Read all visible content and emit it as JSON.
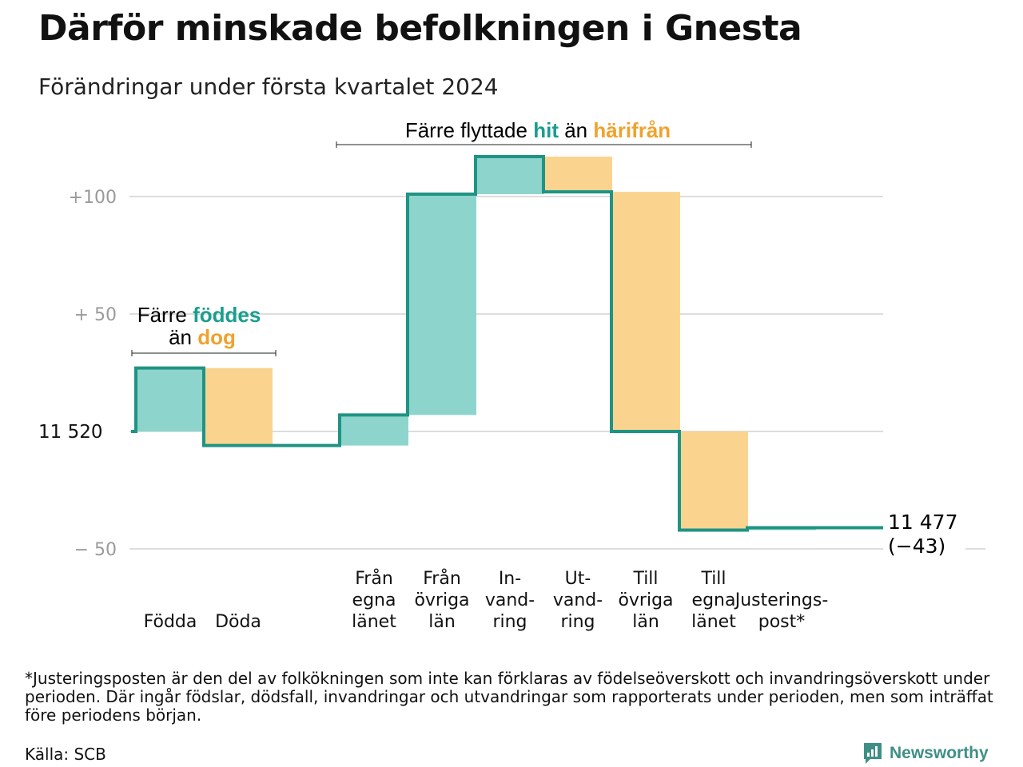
{
  "header": {
    "title": "Därför minskade befolkningen i Gnesta",
    "subtitle": "Förändringar under första kvartalet 2024"
  },
  "colors": {
    "increase": "#8dd5cc",
    "decrease": "#fad48e",
    "line": "#1f9384",
    "grid": "#dddddd",
    "accent_pos": "#1a9e8d",
    "accent_neg": "#f0a22e"
  },
  "chart_data": {
    "type": "waterfall",
    "start_value": 11520,
    "end_value": 11477,
    "ylim": [
      -55,
      120
    ],
    "y_ticks": [
      {
        "value": 100,
        "label": "+100"
      },
      {
        "value": 50,
        "label": "+  50"
      },
      {
        "value": 0,
        "label": "11  520"
      },
      {
        "value": -50,
        "label": "−  50"
      }
    ],
    "steps": [
      {
        "label": "Födda",
        "value": 27
      },
      {
        "label": "Döda",
        "value": -33
      },
      {
        "label": "Från egna länet",
        "value": 13
      },
      {
        "label": "Från övriga län",
        "value": 94
      },
      {
        "label": "In-vand-ring",
        "value": 16
      },
      {
        "label": "Ut-vand-ring",
        "value": -15
      },
      {
        "label": "Till övriga län",
        "value": -102
      },
      {
        "label": "Till egna länet",
        "value": -42
      },
      {
        "label": "Justerings-post*",
        "value": 1
      }
    ],
    "end_label": {
      "line1": "11 477",
      "line2": "(−43)"
    },
    "annotations": [
      {
        "prefix": "Färre",
        "pos": "föddes",
        "mid": "än",
        "neg": "dog"
      },
      {
        "prefix": "Färre flyttade",
        "pos": "hit",
        "mid": "än",
        "neg": "härifrån"
      }
    ]
  },
  "x_labels": [
    {
      "lines": [
        "Födda"
      ]
    },
    {
      "lines": [
        "Döda"
      ]
    },
    {
      "lines": [
        "Från",
        "egna",
        "länet"
      ]
    },
    {
      "lines": [
        "Från",
        "övriga",
        "län"
      ]
    },
    {
      "lines": [
        "In-",
        "vand-",
        "ring"
      ]
    },
    {
      "lines": [
        "Ut-",
        "vand-",
        "ring"
      ]
    },
    {
      "lines": [
        "Till",
        "övriga",
        "län"
      ]
    },
    {
      "lines": [
        "Till",
        "egna",
        "länet"
      ]
    },
    {
      "lines": [
        "Justerings-",
        "post*"
      ]
    }
  ],
  "footer": {
    "footnote": "*Justeringsposten är den del av folkökningen som inte kan förklaras av födelseöverskott och invandringsöverskott under perioden. Där ingår födslar, dödsfall, invandringar och utvandringar som rapporterats under perioden, men som inträffat före periodens början.",
    "source": "Källa: SCB",
    "brand": "Newsworthy",
    "brand_icon": "newsworthy-logo-icon"
  }
}
